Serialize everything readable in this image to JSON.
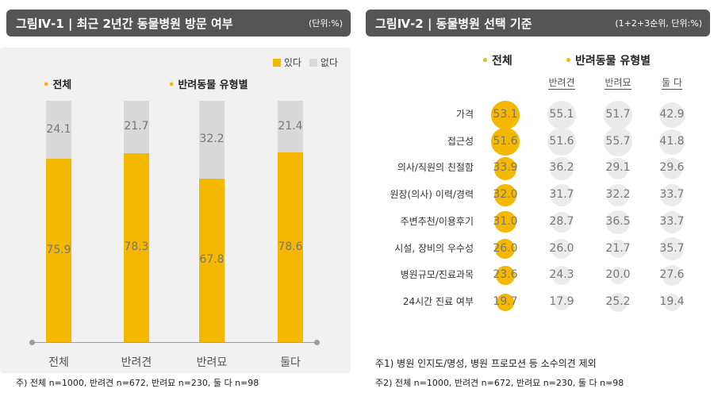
{
  "left": {
    "title": "그림Ⅳ-1 | 최근 2년간 동물병원 방문 여부",
    "unit": "(단위:%)",
    "legend": {
      "yes": "있다",
      "no": "없다",
      "yes_color": "#f5b800",
      "no_color": "#d9d9d9"
    },
    "group_total": "전체",
    "group_pet": "반려동물 유형별",
    "note": "주) 전체 n=1000, 반려견 n=672, 반려묘 n=230, 둘 다 n=98"
  },
  "right": {
    "title": "그림Ⅳ-2 | 동물병원 선택 기준",
    "unit": "(1+2+3순위, 단위:%)",
    "group_total": "전체",
    "group_pet": "반려동물 유형별",
    "note1": "주1) 병원 인지도/명성, 병원 프로모션 등 소수의견 제외",
    "note2": "주2) 전체 n=1000, 반려견 n=672, 반려묘 n=230, 둘 다 n=98"
  },
  "chart_data": [
    {
      "type": "bar",
      "stacked": true,
      "title": "최근 2년간 동물병원 방문 여부",
      "categories": [
        "전체",
        "반려견",
        "반려묘",
        "둘다"
      ],
      "series": [
        {
          "name": "있다",
          "values": [
            75.9,
            78.3,
            67.8,
            78.6
          ]
        },
        {
          "name": "없다",
          "values": [
            24.1,
            21.7,
            32.2,
            21.4
          ]
        }
      ],
      "ylim": [
        0,
        100
      ],
      "legend_position": "top-right"
    },
    {
      "type": "table",
      "title": "동물병원 선택 기준",
      "columns": [
        "전체",
        "반려견",
        "반려묘",
        "둘 다"
      ],
      "rows": [
        {
          "label": "가격",
          "values": [
            53.1,
            55.1,
            51.7,
            42.9
          ]
        },
        {
          "label": "접근성",
          "values": [
            51.6,
            51.6,
            55.7,
            41.8
          ]
        },
        {
          "label": "의사/직원의 친절함",
          "values": [
            33.9,
            36.2,
            29.1,
            29.6
          ]
        },
        {
          "label": "원장(의사) 이력/경력",
          "values": [
            32.0,
            31.7,
            32.2,
            33.7
          ]
        },
        {
          "label": "주변추천/이용후기",
          "values": [
            31.0,
            28.7,
            36.5,
            33.7
          ]
        },
        {
          "label": "시설, 장비의 우수성",
          "values": [
            26.0,
            26.0,
            21.7,
            35.7
          ]
        },
        {
          "label": "병원규모/진료과목",
          "values": [
            23.6,
            24.3,
            20.0,
            27.6
          ]
        },
        {
          "label": "24시간 진료 여부",
          "values": [
            19.7,
            17.9,
            25.2,
            19.4
          ]
        }
      ],
      "highlight_color": "#f5b800",
      "cell_color": "#ebebeb"
    }
  ]
}
